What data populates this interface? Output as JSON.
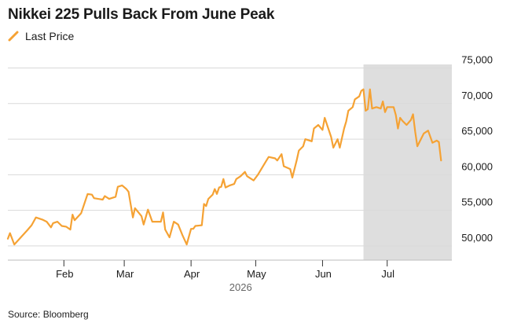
{
  "chart_title": "Nikkei 225 Pulls Back From June Peak",
  "source": "Source: Bloomberg",
  "colors": {
    "line": "#f5a234",
    "shade": "#dedede",
    "grid": "#d9d9d9"
  },
  "chart_data": {
    "type": "line",
    "title": "Nikkei 225 Pulls Back From June Peak",
    "xlabel": "",
    "ylabel": "",
    "year_label": "2026",
    "ylim": [
      48000,
      75500
    ],
    "xlim": [
      "2026-01-06",
      "2026-07-31"
    ],
    "y_ticks": [
      50000,
      55000,
      60000,
      65000,
      70000,
      75000
    ],
    "y_tick_labels": [
      "50,000",
      "55,000",
      "60,000",
      "65,000",
      "70,000",
      "75,000"
    ],
    "x_ticks": [
      {
        "date": "2026-02-01",
        "label": "Feb"
      },
      {
        "date": "2026-03-01",
        "label": "Mar"
      },
      {
        "date": "2026-04-01",
        "label": "Apr"
      },
      {
        "date": "2026-05-01",
        "label": "May"
      },
      {
        "date": "2026-06-01",
        "label": "Jun"
      },
      {
        "date": "2026-07-01",
        "label": "Jul"
      }
    ],
    "grid": true,
    "legend_position": "top-left",
    "shaded_region": {
      "start": "2026-06-20",
      "end": "2026-07-31"
    },
    "series": [
      {
        "name": "Last Price",
        "points": [
          [
            "2026-01-06",
            51000
          ],
          [
            "2026-01-07",
            51800
          ],
          [
            "2026-01-09",
            50200
          ],
          [
            "2026-01-12",
            51200
          ],
          [
            "2026-01-15",
            52200
          ],
          [
            "2026-01-17",
            52900
          ],
          [
            "2026-01-19",
            54000
          ],
          [
            "2026-01-22",
            53700
          ],
          [
            "2026-01-24",
            53400
          ],
          [
            "2026-01-26",
            52600
          ],
          [
            "2026-01-27",
            53200
          ],
          [
            "2026-01-29",
            53400
          ],
          [
            "2026-01-31",
            52800
          ],
          [
            "2026-02-02",
            52700
          ],
          [
            "2026-02-04",
            52300
          ],
          [
            "2026-02-05",
            54400
          ],
          [
            "2026-02-06",
            53600
          ],
          [
            "2026-02-09",
            54600
          ],
          [
            "2026-02-12",
            57300
          ],
          [
            "2026-02-14",
            57200
          ],
          [
            "2026-02-15",
            56700
          ],
          [
            "2026-02-19",
            56500
          ],
          [
            "2026-02-20",
            57000
          ],
          [
            "2026-02-22",
            56600
          ],
          [
            "2026-02-25",
            56900
          ],
          [
            "2026-02-26",
            58300
          ],
          [
            "2026-02-28",
            58500
          ],
          [
            "2026-03-02",
            58000
          ],
          [
            "2026-03-03",
            57600
          ],
          [
            "2026-03-05",
            54000
          ],
          [
            "2026-03-06",
            55300
          ],
          [
            "2026-03-09",
            54200
          ],
          [
            "2026-03-10",
            53000
          ],
          [
            "2026-03-12",
            55100
          ],
          [
            "2026-03-14",
            53400
          ],
          [
            "2026-03-18",
            53400
          ],
          [
            "2026-03-19",
            54700
          ],
          [
            "2026-03-20",
            52300
          ],
          [
            "2026-03-22",
            51200
          ],
          [
            "2026-03-24",
            53400
          ],
          [
            "2026-03-26",
            53000
          ],
          [
            "2026-03-28",
            51500
          ],
          [
            "2026-03-30",
            50200
          ],
          [
            "2026-04-01",
            52400
          ],
          [
            "2026-04-02",
            52400
          ],
          [
            "2026-04-03",
            52800
          ],
          [
            "2026-04-06",
            52900
          ],
          [
            "2026-04-07",
            55900
          ],
          [
            "2026-04-08",
            55600
          ],
          [
            "2026-04-09",
            56600
          ],
          [
            "2026-04-11",
            57200
          ],
          [
            "2026-04-12",
            58000
          ],
          [
            "2026-04-13",
            57300
          ],
          [
            "2026-04-14",
            58200
          ],
          [
            "2026-04-15",
            58300
          ],
          [
            "2026-04-16",
            59400
          ],
          [
            "2026-04-17",
            58200
          ],
          [
            "2026-04-19",
            58500
          ],
          [
            "2026-04-21",
            58700
          ],
          [
            "2026-04-22",
            59400
          ],
          [
            "2026-04-24",
            59800
          ],
          [
            "2026-04-26",
            60400
          ],
          [
            "2026-04-27",
            59800
          ],
          [
            "2026-04-30",
            59200
          ],
          [
            "2026-05-02",
            60000
          ],
          [
            "2026-05-04",
            61000
          ],
          [
            "2026-05-06",
            62000
          ],
          [
            "2026-05-07",
            62500
          ],
          [
            "2026-05-10",
            62300
          ],
          [
            "2026-05-11",
            62000
          ],
          [
            "2026-05-13",
            62900
          ],
          [
            "2026-05-14",
            61200
          ],
          [
            "2026-05-17",
            60800
          ],
          [
            "2026-05-18",
            59600
          ],
          [
            "2026-05-20",
            62000
          ],
          [
            "2026-05-21",
            63400
          ],
          [
            "2026-05-23",
            64000
          ],
          [
            "2026-05-24",
            65000
          ],
          [
            "2026-05-27",
            64700
          ],
          [
            "2026-05-28",
            66500
          ],
          [
            "2026-05-30",
            67000
          ],
          [
            "2026-06-01",
            66300
          ],
          [
            "2026-06-02",
            68000
          ],
          [
            "2026-06-05",
            65300
          ],
          [
            "2026-06-06",
            63800
          ],
          [
            "2026-06-08",
            65000
          ],
          [
            "2026-06-09",
            63800
          ],
          [
            "2026-06-11",
            66500
          ],
          [
            "2026-06-12",
            67500
          ],
          [
            "2026-06-13",
            69000
          ],
          [
            "2026-06-15",
            69500
          ],
          [
            "2026-06-16",
            70600
          ],
          [
            "2026-06-18",
            71000
          ],
          [
            "2026-06-19",
            71800
          ],
          [
            "2026-06-20",
            72000
          ],
          [
            "2026-06-21",
            69000
          ],
          [
            "2026-06-22",
            69200
          ],
          [
            "2026-06-23",
            72000
          ],
          [
            "2026-06-24",
            69300
          ],
          [
            "2026-06-26",
            69500
          ],
          [
            "2026-06-28",
            69300
          ],
          [
            "2026-06-29",
            70300
          ],
          [
            "2026-06-30",
            68800
          ],
          [
            "2026-07-01",
            69500
          ],
          [
            "2026-07-04",
            69500
          ],
          [
            "2026-07-05",
            68400
          ],
          [
            "2026-07-06",
            66500
          ],
          [
            "2026-07-07",
            68000
          ],
          [
            "2026-07-08",
            67600
          ],
          [
            "2026-07-10",
            67000
          ],
          [
            "2026-07-12",
            67700
          ],
          [
            "2026-07-13",
            68500
          ],
          [
            "2026-07-14",
            66000
          ],
          [
            "2026-07-15",
            64000
          ],
          [
            "2026-07-18",
            65800
          ],
          [
            "2026-07-20",
            66200
          ],
          [
            "2026-07-22",
            64500
          ],
          [
            "2026-07-24",
            64800
          ],
          [
            "2026-07-25",
            64600
          ],
          [
            "2026-07-26",
            62000
          ]
        ]
      }
    ]
  }
}
